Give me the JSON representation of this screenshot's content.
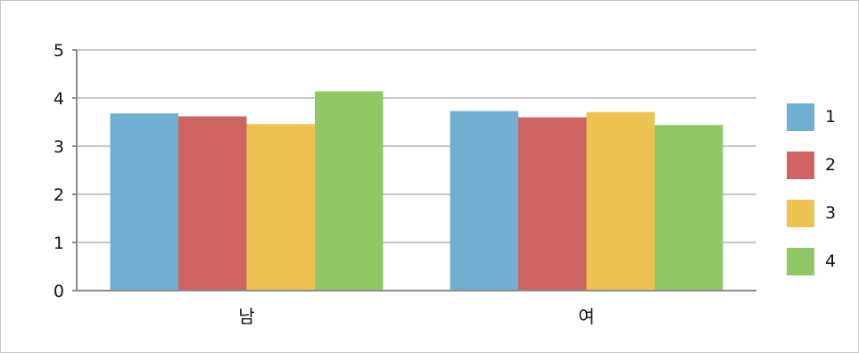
{
  "chart_data": {
    "type": "bar",
    "categories": [
      "남",
      "여"
    ],
    "series": [
      {
        "name": "1",
        "values": [
          3.68,
          3.73
        ]
      },
      {
        "name": "2",
        "values": [
          3.62,
          3.6
        ]
      },
      {
        "name": "3",
        "values": [
          3.46,
          3.71
        ]
      },
      {
        "name": "4",
        "values": [
          4.14,
          3.44
        ]
      }
    ],
    "colors": [
      "#70afd0",
      "#cd6462",
      "#ecc352",
      "#90c866"
    ],
    "yticks": [
      "0",
      "1",
      "2",
      "3",
      "4",
      "5"
    ],
    "ylim": [
      0,
      5
    ],
    "grid": true,
    "legend": "right"
  }
}
